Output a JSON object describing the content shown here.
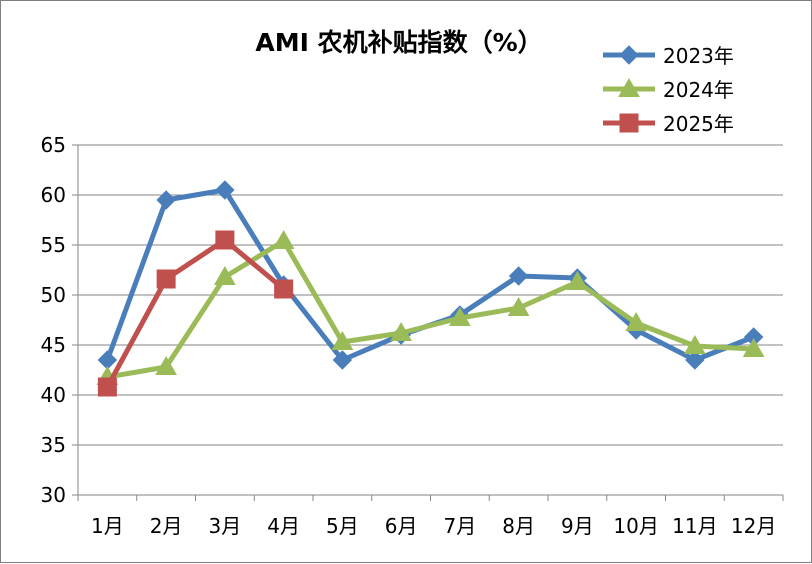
{
  "chart_data": {
    "type": "line",
    "title": "AMI 农机补贴指数（%）",
    "xlabel": "",
    "ylabel": "",
    "categories": [
      "1月",
      "2月",
      "3月",
      "4月",
      "5月",
      "6月",
      "7月",
      "8月",
      "9月",
      "10月",
      "11月",
      "12月"
    ],
    "ylim": [
      30,
      65
    ],
    "yticks": [
      30,
      35,
      40,
      45,
      50,
      55,
      60,
      65
    ],
    "grid": true,
    "legend_position": "top-right",
    "series": [
      {
        "name": "2023年",
        "color": "#4a7ebb",
        "marker": "diamond",
        "values": [
          43.5,
          59.5,
          60.5,
          51.0,
          43.5,
          46.0,
          48.0,
          51.9,
          51.7,
          46.5,
          43.5,
          45.8
        ]
      },
      {
        "name": "2024年",
        "color": "#9bbb59",
        "marker": "triangle",
        "values": [
          41.8,
          42.8,
          51.8,
          55.4,
          45.3,
          46.2,
          47.7,
          48.7,
          51.3,
          47.2,
          44.9,
          44.6
        ]
      },
      {
        "name": "2025年",
        "color": "#c0504d",
        "marker": "square",
        "values": [
          40.8,
          51.6,
          55.5,
          50.6,
          null,
          null,
          null,
          null,
          null,
          null,
          null,
          null
        ]
      }
    ]
  }
}
